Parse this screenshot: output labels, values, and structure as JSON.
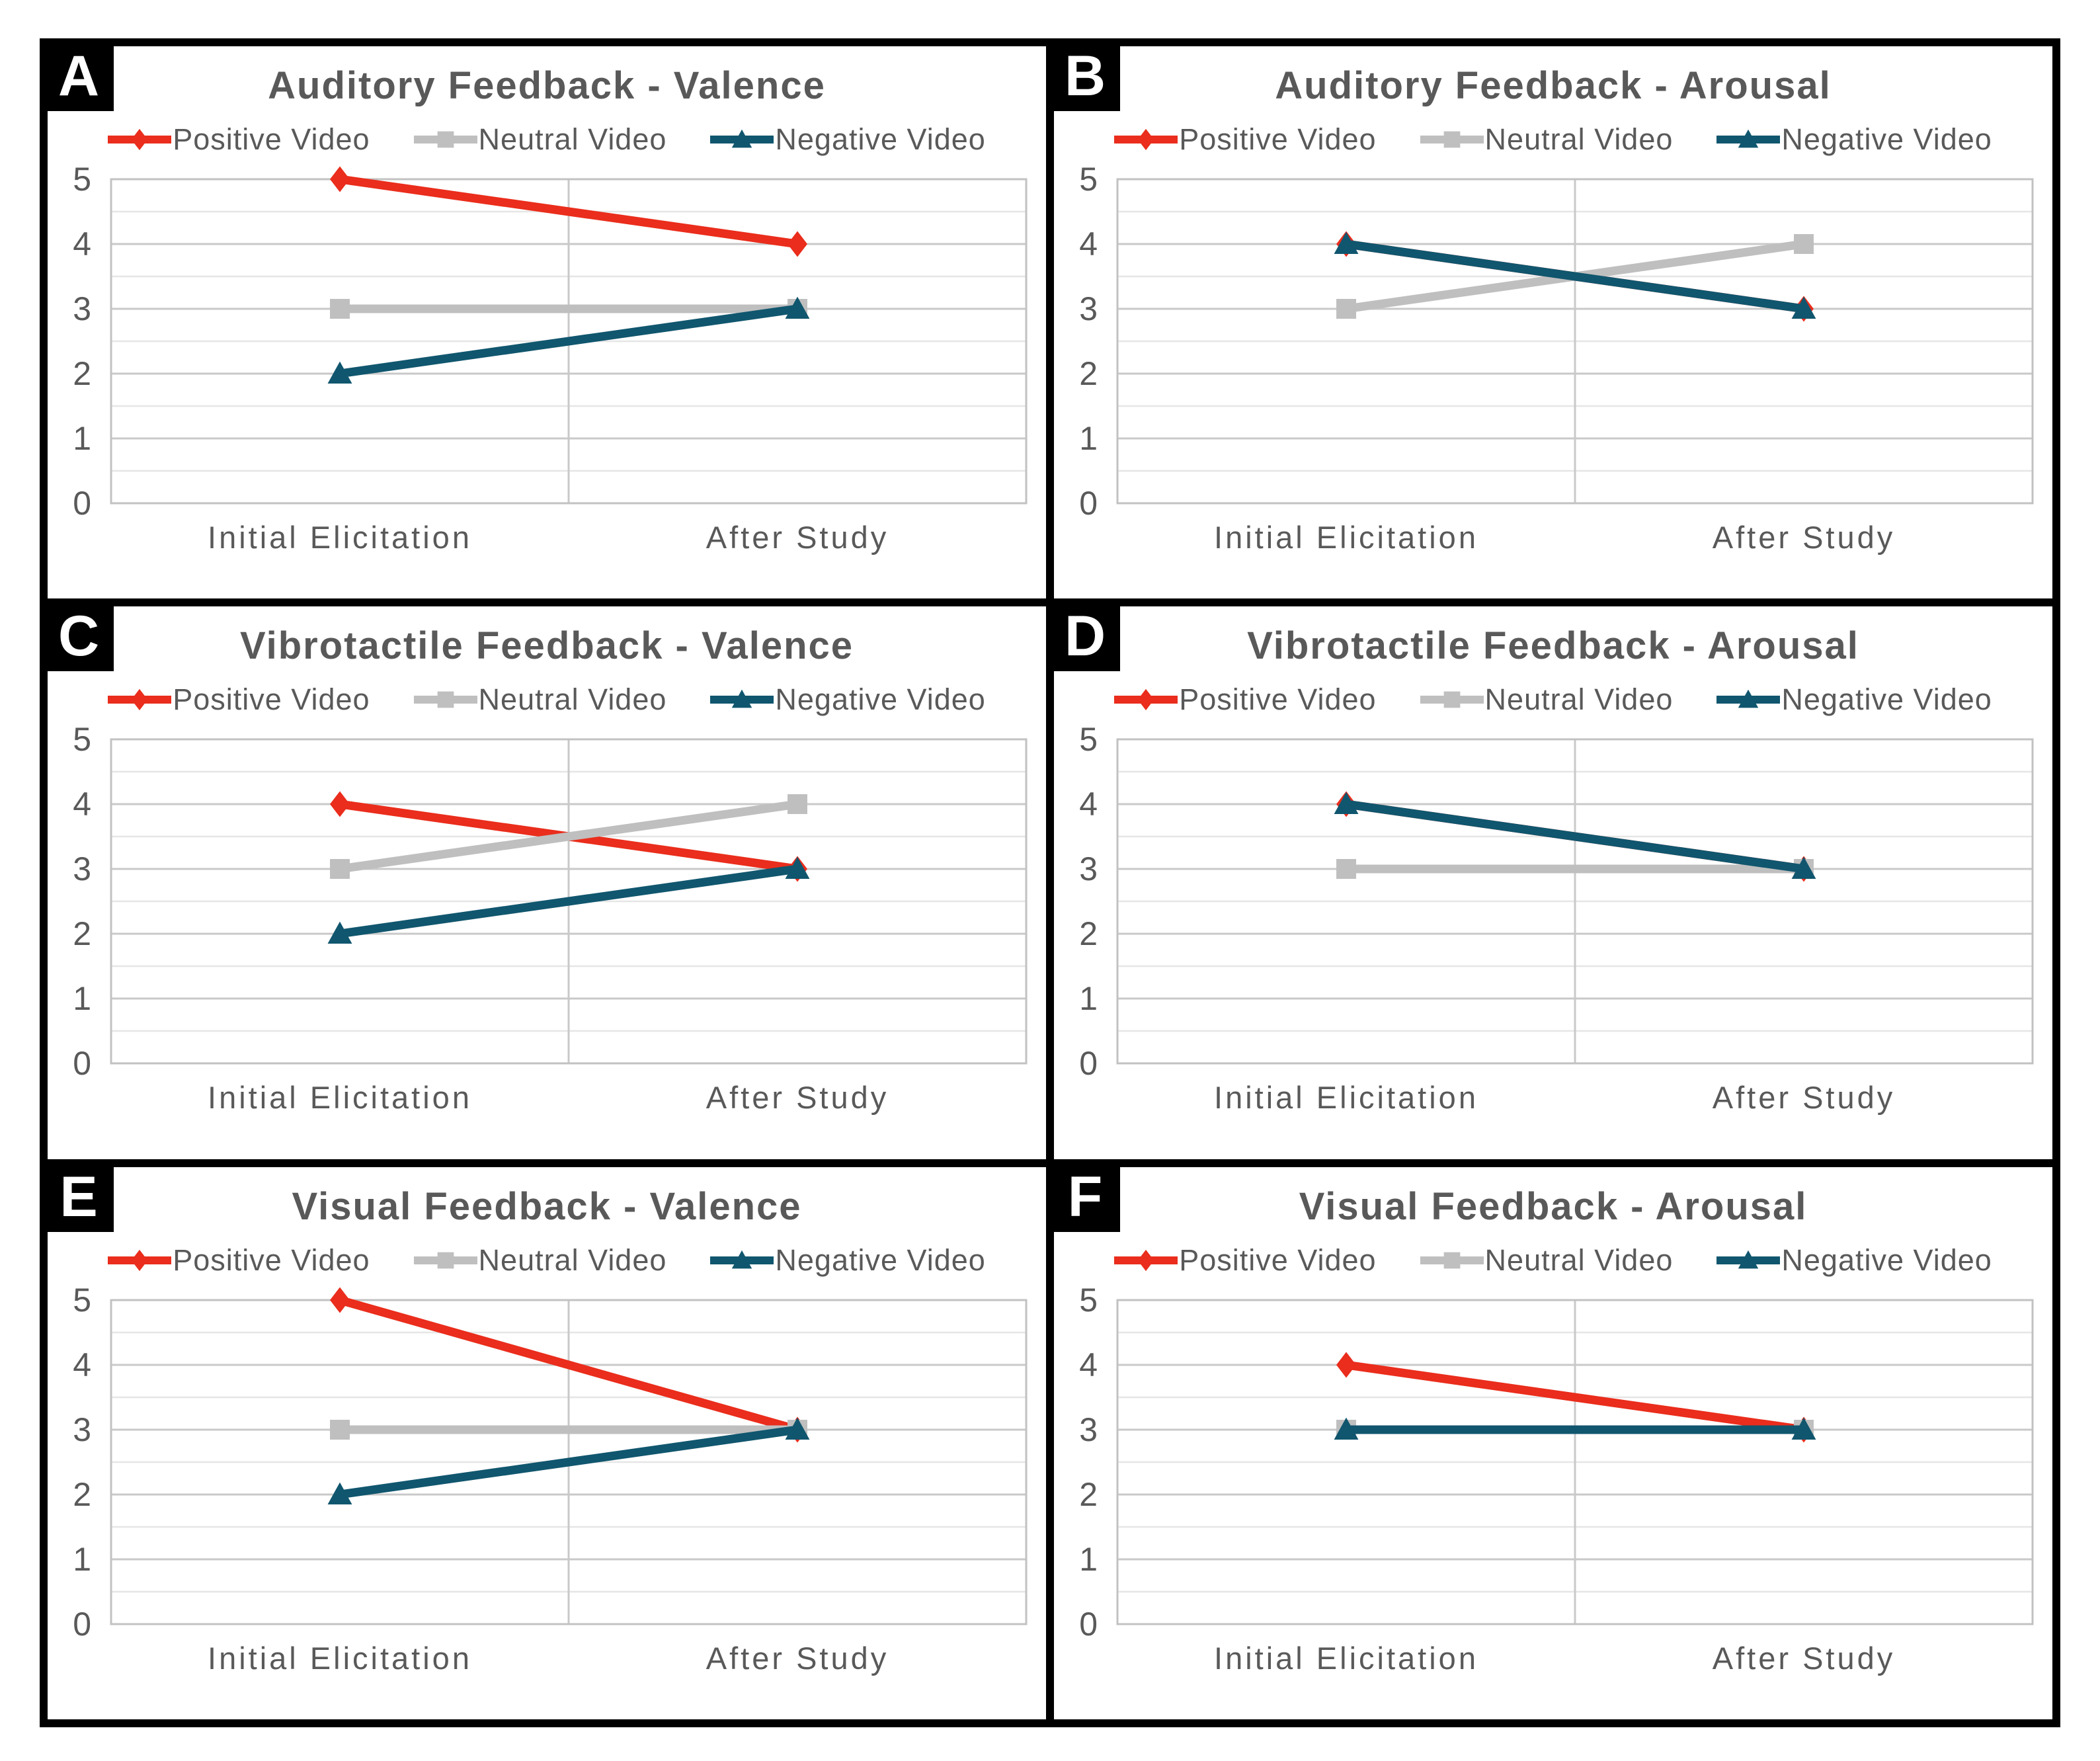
{
  "figure": {
    "panel_letters": [
      "A",
      "B",
      "C",
      "D",
      "E",
      "F"
    ],
    "legend_items": [
      {
        "label": "Positive Video",
        "marker": "diamond",
        "color": "#EA2D1C"
      },
      {
        "label": "Neutral Video",
        "marker": "square",
        "color": "#BFBFBF"
      },
      {
        "label": "Negative Video",
        "marker": "triangle",
        "color": "#10566E"
      }
    ],
    "styles": {
      "background": "#FFFFFF",
      "panel_border": "#000000",
      "label_box_bg": "#000000",
      "label_box_text": "#FFFFFF",
      "text_color": "#595959",
      "major_gridline": "#C9C9C9",
      "minor_gridline": "#E6E6E6",
      "plot_border": "#C2C2C2"
    }
  },
  "chart_data": [
    {
      "panel_label": "A",
      "type": "line",
      "title": "Auditory Feedback - Valence",
      "categories": [
        "Initial Elicitation",
        "After Study"
      ],
      "series": [
        {
          "name": "Positive Video",
          "values": [
            5,
            4
          ]
        },
        {
          "name": "Neutral Video",
          "values": [
            3,
            3
          ]
        },
        {
          "name": "Negative Video",
          "values": [
            2,
            3
          ]
        }
      ],
      "ylim": [
        0,
        5
      ],
      "yticks": [
        0,
        1,
        2,
        3,
        4,
        5
      ],
      "grid": true,
      "legend_position": "top"
    },
    {
      "panel_label": "B",
      "type": "line",
      "title": "Auditory Feedback - Arousal",
      "categories": [
        "Initial Elicitation",
        "After Study"
      ],
      "series": [
        {
          "name": "Positive Video",
          "values": [
            4,
            3
          ]
        },
        {
          "name": "Neutral Video",
          "values": [
            3,
            4
          ]
        },
        {
          "name": "Negative Video",
          "values": [
            4,
            3
          ]
        }
      ],
      "ylim": [
        0,
        5
      ],
      "yticks": [
        0,
        1,
        2,
        3,
        4,
        5
      ],
      "grid": true,
      "legend_position": "top"
    },
    {
      "panel_label": "C",
      "type": "line",
      "title": "Vibrotactile Feedback - Valence",
      "categories": [
        "Initial Elicitation",
        "After Study"
      ],
      "series": [
        {
          "name": "Positive Video",
          "values": [
            4,
            3
          ]
        },
        {
          "name": "Neutral Video",
          "values": [
            3,
            4
          ]
        },
        {
          "name": "Negative Video",
          "values": [
            2,
            3
          ]
        }
      ],
      "ylim": [
        0,
        5
      ],
      "yticks": [
        0,
        1,
        2,
        3,
        4,
        5
      ],
      "grid": true,
      "legend_position": "top"
    },
    {
      "panel_label": "D",
      "type": "line",
      "title": "Vibrotactile Feedback - Arousal",
      "categories": [
        "Initial Elicitation",
        "After Study"
      ],
      "series": [
        {
          "name": "Positive Video",
          "values": [
            4,
            3
          ]
        },
        {
          "name": "Neutral Video",
          "values": [
            3,
            3
          ]
        },
        {
          "name": "Negative Video",
          "values": [
            4,
            3
          ]
        }
      ],
      "ylim": [
        0,
        5
      ],
      "yticks": [
        0,
        1,
        2,
        3,
        4,
        5
      ],
      "grid": true,
      "legend_position": "top"
    },
    {
      "panel_label": "E",
      "type": "line",
      "title": "Visual Feedback - Valence",
      "categories": [
        "Initial Elicitation",
        "After Study"
      ],
      "series": [
        {
          "name": "Positive Video",
          "values": [
            5,
            3
          ]
        },
        {
          "name": "Neutral Video",
          "values": [
            3,
            3
          ]
        },
        {
          "name": "Negative Video",
          "values": [
            2,
            3
          ]
        }
      ],
      "ylim": [
        0,
        5
      ],
      "yticks": [
        0,
        1,
        2,
        3,
        4,
        5
      ],
      "grid": true,
      "legend_position": "top"
    },
    {
      "panel_label": "F",
      "type": "line",
      "title": "Visual Feedback - Arousal",
      "categories": [
        "Initial Elicitation",
        "After Study"
      ],
      "series": [
        {
          "name": "Positive Video",
          "values": [
            4,
            3
          ]
        },
        {
          "name": "Neutral Video",
          "values": [
            3,
            3
          ]
        },
        {
          "name": "Negative Video",
          "values": [
            3,
            3
          ]
        }
      ],
      "ylim": [
        0,
        5
      ],
      "yticks": [
        0,
        1,
        2,
        3,
        4,
        5
      ],
      "grid": true,
      "legend_position": "top"
    }
  ]
}
